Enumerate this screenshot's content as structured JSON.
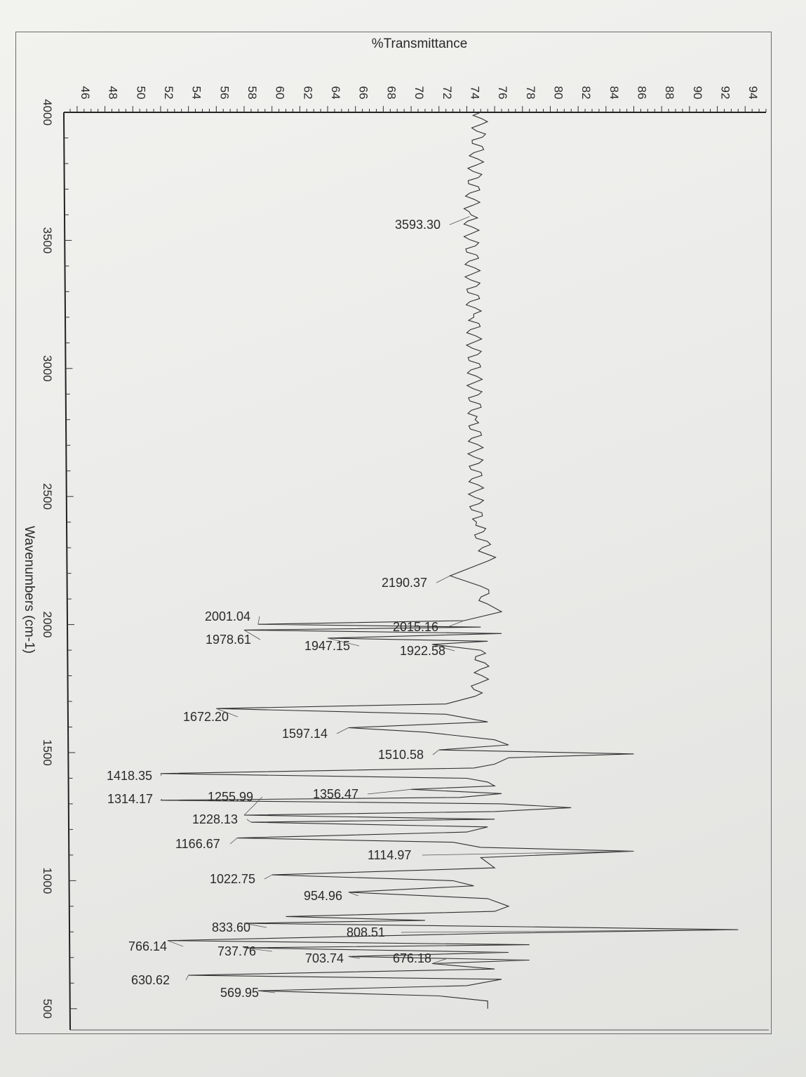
{
  "chart_data": {
    "type": "line",
    "orientation": "rotated-90",
    "title": "%Transmittance",
    "xlabel": "Wavenumbers (cm-1)",
    "ylabel": "%Transmittance",
    "xlim": [
      4000,
      450
    ],
    "ylim": [
      45.5,
      95.5
    ],
    "x_ticks": [
      4000,
      3500,
      3000,
      2500,
      2000,
      1500,
      1000,
      500
    ],
    "y_ticks": [
      46,
      48,
      50,
      52,
      54,
      56,
      58,
      60,
      62,
      64,
      66,
      68,
      70,
      72,
      74,
      76,
      78,
      80,
      82,
      84,
      86,
      88,
      90,
      92,
      94
    ],
    "grid": false,
    "series": [
      {
        "points": [
          [
            4000,
            75.0
          ],
          [
            3600,
            74.3
          ],
          [
            3200,
            74.5
          ],
          [
            2800,
            74.6
          ],
          [
            2400,
            74.7
          ],
          [
            2250,
            75.6
          ],
          [
            2190.37,
            72.8
          ],
          [
            2150,
            75.0
          ],
          [
            2080,
            75.5
          ],
          [
            2050,
            76.5
          ],
          [
            2015.16,
            73.8
          ],
          [
            2001.04,
            59.0
          ],
          [
            1990,
            75.0
          ],
          [
            1978.61,
            58.0
          ],
          [
            1965,
            76.5
          ],
          [
            1947.15,
            64.0
          ],
          [
            1935,
            75.5
          ],
          [
            1922.58,
            71.5
          ],
          [
            1900,
            75.0
          ],
          [
            1800,
            75.1
          ],
          [
            1720,
            74.6
          ],
          [
            1690,
            72.5
          ],
          [
            1672.2,
            56.0
          ],
          [
            1650,
            72.5
          ],
          [
            1620,
            75.5
          ],
          [
            1597.14,
            65.5
          ],
          [
            1580,
            71.0
          ],
          [
            1550,
            76.0
          ],
          [
            1530,
            77.0
          ],
          [
            1510.58,
            72.0
          ],
          [
            1495,
            86.0
          ],
          [
            1480,
            77.0
          ],
          [
            1455,
            76.0
          ],
          [
            1440,
            74.5
          ],
          [
            1418.35,
            52.0
          ],
          [
            1400,
            74.0
          ],
          [
            1385,
            75.5
          ],
          [
            1370,
            76.0
          ],
          [
            1356.47,
            70.0
          ],
          [
            1340,
            76.5
          ],
          [
            1325,
            73.5
          ],
          [
            1314.17,
            52.0
          ],
          [
            1300,
            76.5
          ],
          [
            1285,
            81.5
          ],
          [
            1270,
            76.0
          ],
          [
            1255.99,
            58.0
          ],
          [
            1240,
            76.0
          ],
          [
            1228.13,
            58.5
          ],
          [
            1210,
            75.5
          ],
          [
            1190,
            74.0
          ],
          [
            1166.67,
            57.5
          ],
          [
            1150,
            73.0
          ],
          [
            1130,
            75.0
          ],
          [
            1114.97,
            86.0
          ],
          [
            1090,
            75.0
          ],
          [
            1050,
            76.0
          ],
          [
            1022.75,
            60.0
          ],
          [
            1000,
            73.0
          ],
          [
            980,
            74.5
          ],
          [
            954.96,
            65.5
          ],
          [
            930,
            75.5
          ],
          [
            900,
            77.0
          ],
          [
            880,
            76.0
          ],
          [
            860,
            61.0
          ],
          [
            845,
            71.0
          ],
          [
            833.6,
            58.0
          ],
          [
            820,
            78.0
          ],
          [
            808.51,
            93.5
          ],
          [
            795,
            76.5
          ],
          [
            766.14,
            52.5
          ],
          [
            750,
            78.5
          ],
          [
            737.76,
            58.0
          ],
          [
            720,
            77.0
          ],
          [
            703.74,
            65.5
          ],
          [
            690,
            78.5
          ],
          [
            676.18,
            71.5
          ],
          [
            655,
            76.0
          ],
          [
            630.62,
            54.0
          ],
          [
            615,
            76.5
          ],
          [
            590,
            74.0
          ],
          [
            569.95,
            59.0
          ],
          [
            550,
            72.0
          ],
          [
            530,
            75.5
          ],
          [
            500,
            75.5
          ]
        ]
      }
    ],
    "peaks": [
      {
        "x": 3593.3,
        "label": "3593.30"
      },
      {
        "x": 2190.37,
        "label": "2190.37"
      },
      {
        "x": 2015.16,
        "label": "2015.16"
      },
      {
        "x": 2001.04,
        "label": "2001.04"
      },
      {
        "x": 1978.61,
        "label": "1978.61"
      },
      {
        "x": 1947.15,
        "label": "1947.15"
      },
      {
        "x": 1922.58,
        "label": "1922.58"
      },
      {
        "x": 1672.2,
        "label": "1672.20"
      },
      {
        "x": 1597.14,
        "label": "1597.14"
      },
      {
        "x": 1510.58,
        "label": "1510.58"
      },
      {
        "x": 1418.35,
        "label": "1418.35"
      },
      {
        "x": 1356.47,
        "label": "1356.47"
      },
      {
        "x": 1314.17,
        "label": "1314.17"
      },
      {
        "x": 1255.99,
        "label": "1255.99"
      },
      {
        "x": 1228.13,
        "label": "1228.13"
      },
      {
        "x": 1166.67,
        "label": "1166.67"
      },
      {
        "x": 1114.97,
        "label": "1114.97"
      },
      {
        "x": 1022.75,
        "label": "1022.75"
      },
      {
        "x": 954.96,
        "label": "954.96"
      },
      {
        "x": 833.6,
        "label": "833.60"
      },
      {
        "x": 808.51,
        "label": "808.51"
      },
      {
        "x": 766.14,
        "label": "766.14"
      },
      {
        "x": 737.76,
        "label": "737.76"
      },
      {
        "x": 703.74,
        "label": "703.74"
      },
      {
        "x": 676.18,
        "label": "676.18"
      },
      {
        "x": 630.62,
        "label": "630.62"
      },
      {
        "x": 569.95,
        "label": "569.95"
      }
    ]
  }
}
